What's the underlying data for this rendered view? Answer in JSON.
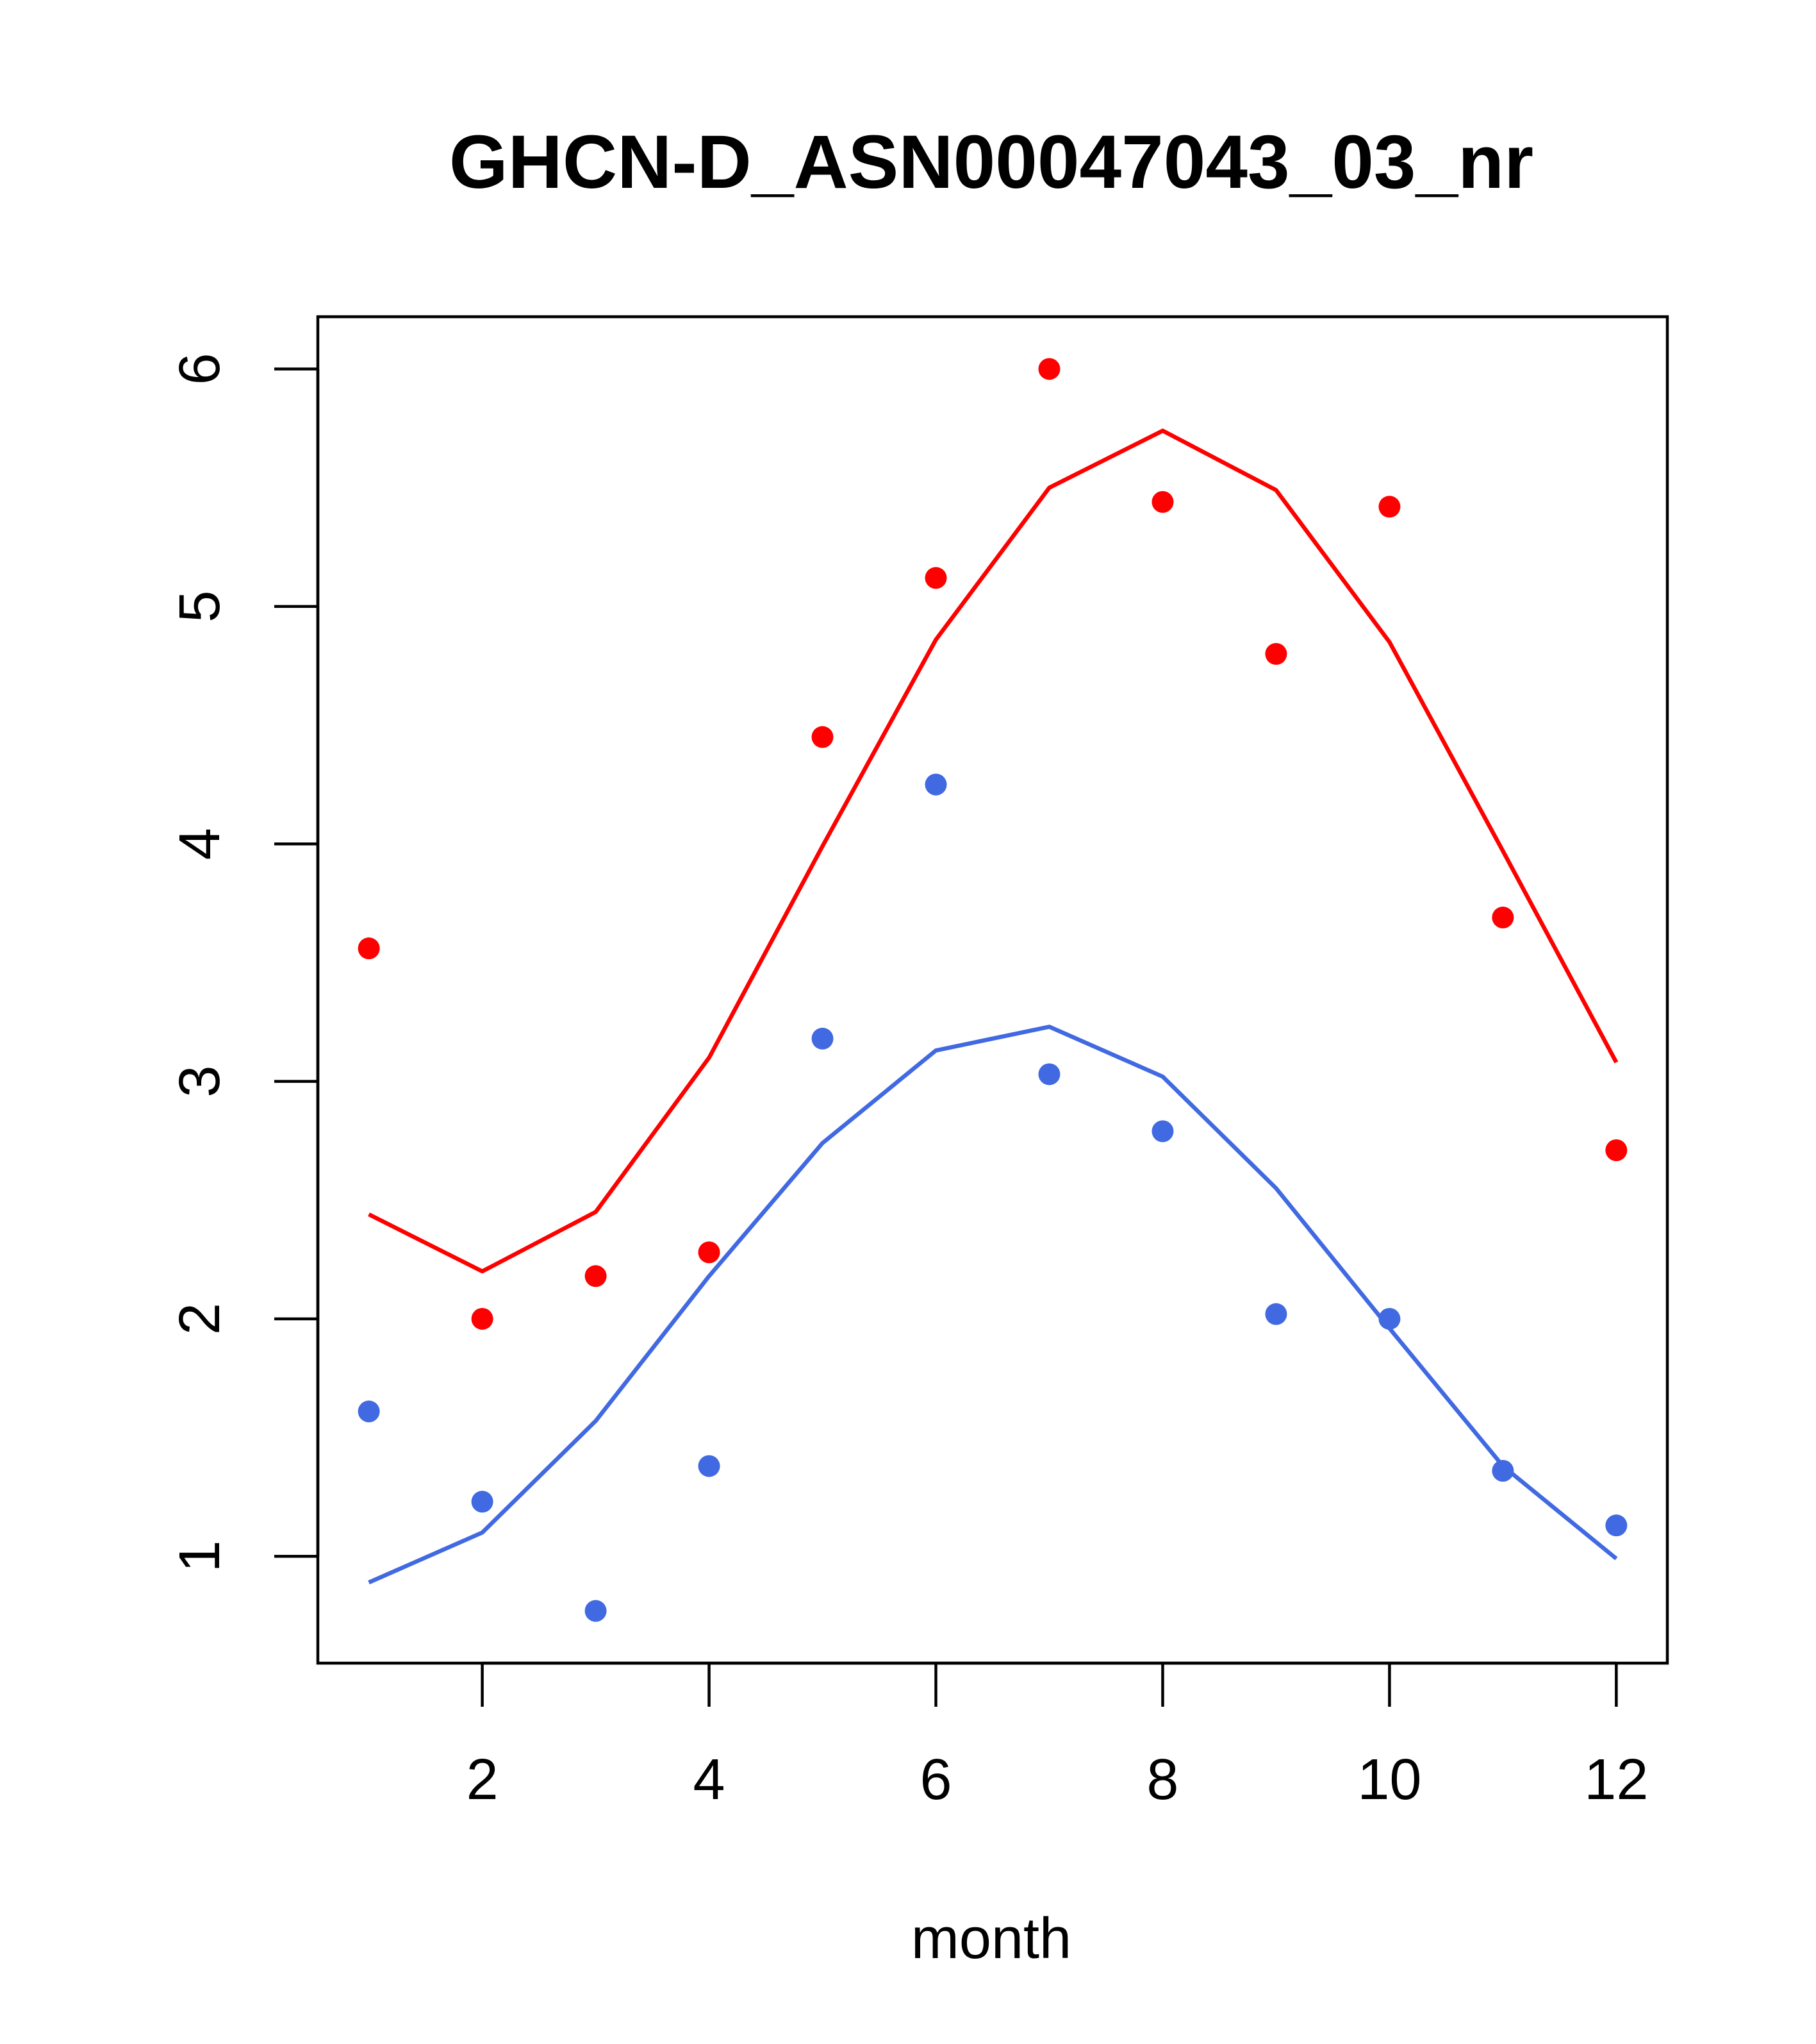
{
  "chart_data": {
    "type": "scatter",
    "title": "GHCN-D_ASN00047043_03_nr",
    "xlabel": "month",
    "ylabel": "",
    "xlim": [
      0.55,
      12.45
    ],
    "ylim": [
      0.55,
      6.22
    ],
    "x_ticks": [
      2,
      4,
      6,
      8,
      10,
      12
    ],
    "y_ticks": [
      1,
      2,
      3,
      4,
      5,
      6
    ],
    "grid": false,
    "x": [
      1,
      2,
      3,
      4,
      5,
      6,
      7,
      8,
      9,
      10,
      11,
      12
    ],
    "series": [
      {
        "color": "#ff0000",
        "points": [
          3.56,
          2.0,
          2.18,
          2.28,
          4.45,
          5.12,
          6.0,
          5.44,
          4.8,
          5.42,
          3.69,
          2.71
        ],
        "fit": [
          2.44,
          2.2,
          2.45,
          3.1,
          3.99,
          4.86,
          5.5,
          5.74,
          5.49,
          4.85,
          3.97,
          3.08
        ]
      },
      {
        "color": "#4169e1",
        "points": [
          1.61,
          1.23,
          0.77,
          1.38,
          3.18,
          4.25,
          3.03,
          2.79,
          2.02,
          2.0,
          1.36,
          1.13
        ],
        "fit": [
          0.89,
          1.1,
          1.57,
          2.18,
          2.74,
          3.13,
          3.23,
          3.02,
          2.55,
          1.96,
          1.38,
          0.99
        ]
      }
    ]
  }
}
